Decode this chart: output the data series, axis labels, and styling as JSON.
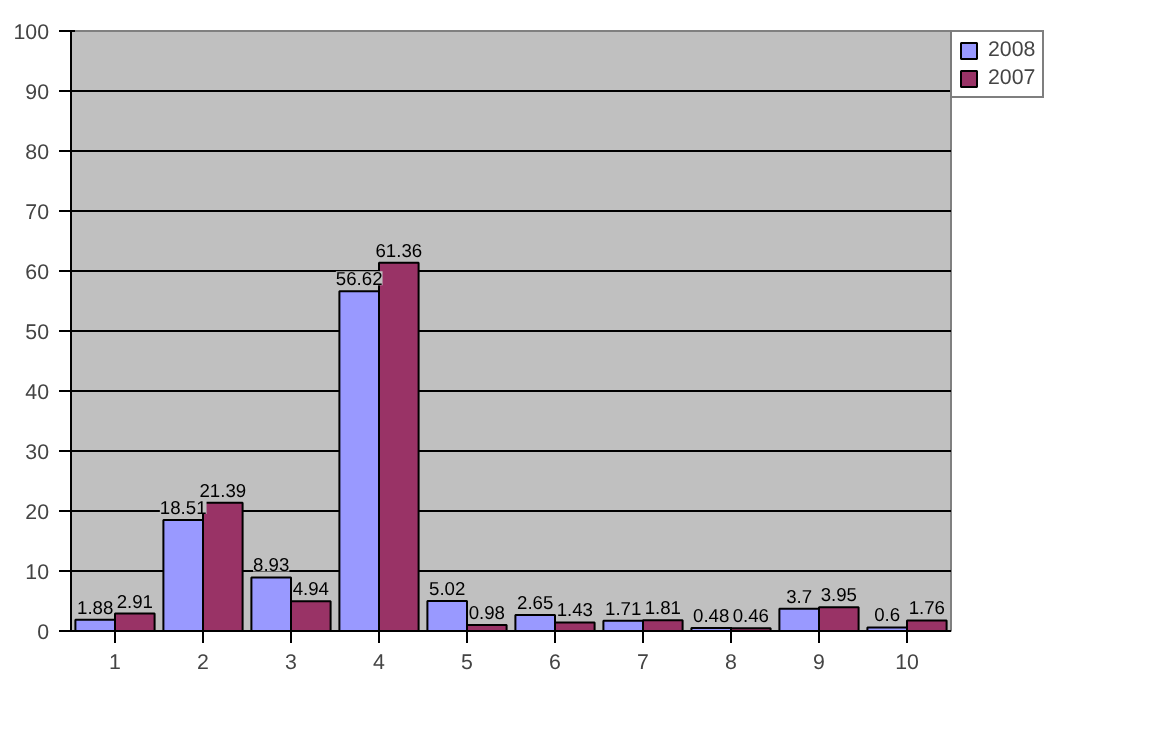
{
  "chart_data": {
    "type": "bar",
    "categories": [
      "1",
      "2",
      "3",
      "4",
      "5",
      "6",
      "7",
      "8",
      "9",
      "10"
    ],
    "series": [
      {
        "name": "2008",
        "color": "#9999ff",
        "values": [
          1.88,
          18.51,
          8.93,
          56.62,
          5.02,
          2.65,
          1.71,
          0.48,
          3.7,
          0.6
        ]
      },
      {
        "name": "2007",
        "color": "#993366",
        "values": [
          2.91,
          21.39,
          4.94,
          61.36,
          0.98,
          1.43,
          1.81,
          0.46,
          3.95,
          1.76
        ]
      }
    ],
    "ylim": [
      0,
      100
    ],
    "yticks": [
      0,
      10,
      20,
      30,
      40,
      50,
      60,
      70,
      80,
      90,
      100
    ],
    "grid": "y",
    "legend": "right",
    "data_labels": true
  }
}
